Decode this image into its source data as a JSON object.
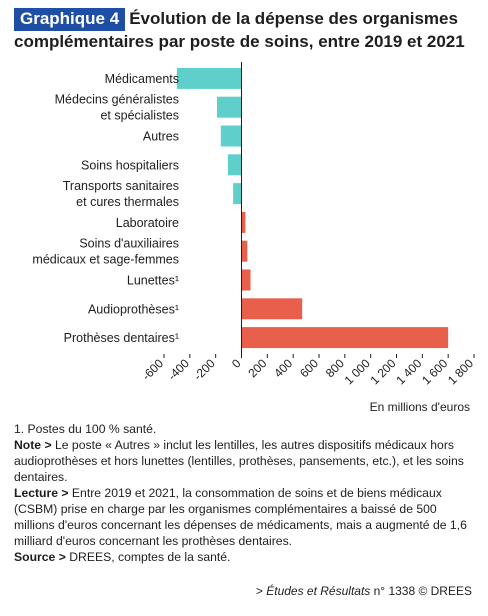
{
  "header": {
    "tag": "Graphique 4",
    "title": "Évolution de la dépense des organismes complémentaires par poste de soins, entre 2019 et 2021"
  },
  "chart_data": {
    "type": "bar",
    "orientation": "horizontal",
    "title": "Évolution de la dépense des organismes complémentaires par poste de soins, entre 2019 et 2021",
    "xlabel": "En millions d'euros",
    "categories": [
      [
        "Médicaments"
      ],
      [
        "Médecins généralistes",
        "et spécialistes"
      ],
      [
        "Autres"
      ],
      [
        "Soins hospitaliers"
      ],
      [
        "Transports sanitaires",
        "et cures thermales"
      ],
      [
        "Laboratoire"
      ],
      [
        "Soins d'auxiliaires",
        "médicaux et sage-femmes"
      ],
      [
        "Lunettes¹"
      ],
      [
        "Audioprothèses¹"
      ],
      [
        "Prothèses dentaires¹"
      ]
    ],
    "values": [
      -500,
      -190,
      -160,
      -105,
      -65,
      30,
      45,
      70,
      470,
      1600
    ],
    "xlim": [
      -600,
      1800
    ],
    "xticks": [
      -600,
      -400,
      -200,
      0,
      200,
      400,
      600,
      800,
      1000,
      1200,
      1400,
      1600,
      1800
    ],
    "xtick_labels": [
      "-600",
      "-400",
      "-200",
      "0",
      "200",
      "400",
      "600",
      "800",
      "1 000",
      "1 200",
      "1 400",
      "1 600",
      "1 800"
    ],
    "colors": {
      "negative": "#5fcfcb",
      "positive": "#e8604c",
      "axis": "#1e1e1e"
    },
    "grid": false
  },
  "notes": {
    "footnote": "1. Postes du 100 % santé.",
    "note_label": "Note >",
    "note_text": " Le poste « Autres » inclut les lentilles, les autres dispositifs médicaux hors audioprothèses et hors lunettes (lentilles, prothèses, pansements, etc.), et les soins dentaires.",
    "lecture_label": "Lecture >",
    "lecture_text": " Entre 2019 et 2021, la consommation de soins et de biens médicaux (CSBM) prise en charge par les organismes complémentaires a baissé de 500 millions d'euros concernant les dépenses de médicaments, mais a augmenté de 1,6 milliard d'euros concernant les prothèses dentaires.",
    "source_label": "Source >",
    "source_text": " DREES, comptes de la santé."
  },
  "footer": {
    "prefix": "> ",
    "publication": "Études et Résultats",
    "suffix": " n° 1338 © DREES"
  }
}
